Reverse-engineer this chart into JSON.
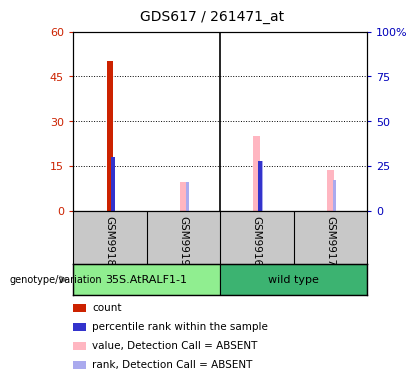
{
  "title": "GDS617 / 261471_at",
  "samples": [
    "GSM9918",
    "GSM9919",
    "GSM9916",
    "GSM9917"
  ],
  "left_yticks": [
    0,
    15,
    30,
    45,
    60
  ],
  "right_yticks": [
    0,
    25,
    50,
    75,
    100
  ],
  "right_yticklabels": [
    "0",
    "25",
    "50",
    "75",
    "100%"
  ],
  "ylim_left": 60,
  "ylim_right": 100,
  "count_values": [
    50,
    0,
    0,
    0
  ],
  "percentile_values": [
    30,
    0,
    28,
    0
  ],
  "absent_value_bars": [
    0,
    16,
    42,
    23
  ],
  "absent_rank_bars": [
    0,
    16,
    28,
    17
  ],
  "count_color": "#CC2200",
  "percentile_color": "#3333CC",
  "absent_value_color": "#FFB6C1",
  "absent_rank_color": "#AAAAEE",
  "legend_items": [
    {
      "color": "#CC2200",
      "label": "count"
    },
    {
      "color": "#3333CC",
      "label": "percentile rank within the sample"
    },
    {
      "color": "#FFB6C1",
      "label": "value, Detection Call = ABSENT"
    },
    {
      "color": "#AAAAEE",
      "label": "rank, Detection Call = ABSENT"
    }
  ],
  "left_tick_color": "#CC2200",
  "right_tick_color": "#0000BB",
  "group1_label": "35S.AtRALF1-1",
  "group2_label": "wild type",
  "group1_color": "#90EE90",
  "group2_color": "#3CB371",
  "genotype_label": "genotype/variation",
  "background_color": "#ffffff",
  "sample_bg_color": "#C8C8C8"
}
